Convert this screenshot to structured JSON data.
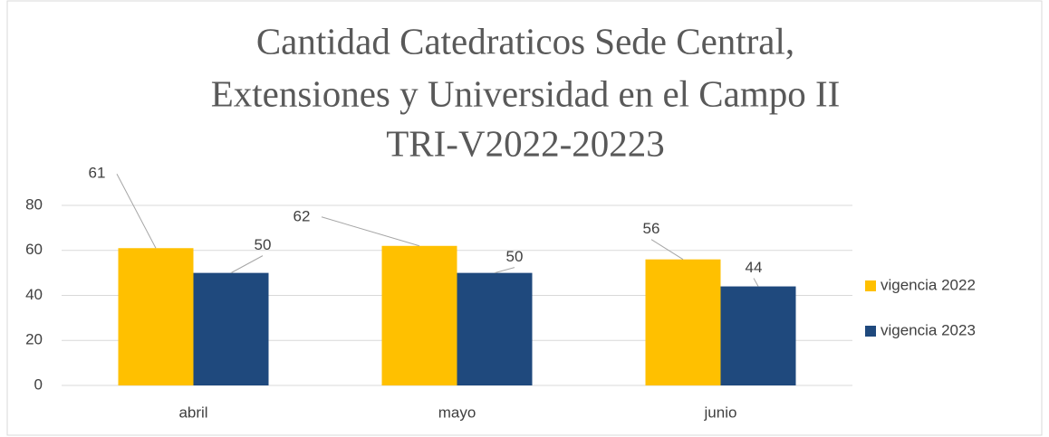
{
  "chart_data": {
    "type": "bar",
    "title": [
      "Cantidad Catedraticos Sede Central,",
      "Extensiones y Universidad en el Campo II",
      "TRI-V2022-20223"
    ],
    "categories": [
      "abril",
      "mayo",
      "junio"
    ],
    "series": [
      {
        "name": "vigencia 2022",
        "color": "#ffc000",
        "values": [
          61,
          62,
          56
        ]
      },
      {
        "name": "vigencia 2023",
        "color": "#1f497d",
        "values": [
          50,
          50,
          44
        ]
      }
    ],
    "ylim": [
      0,
      80
    ],
    "yticks": [
      0,
      20,
      40,
      60,
      80
    ],
    "grid": true,
    "legend": "right"
  }
}
